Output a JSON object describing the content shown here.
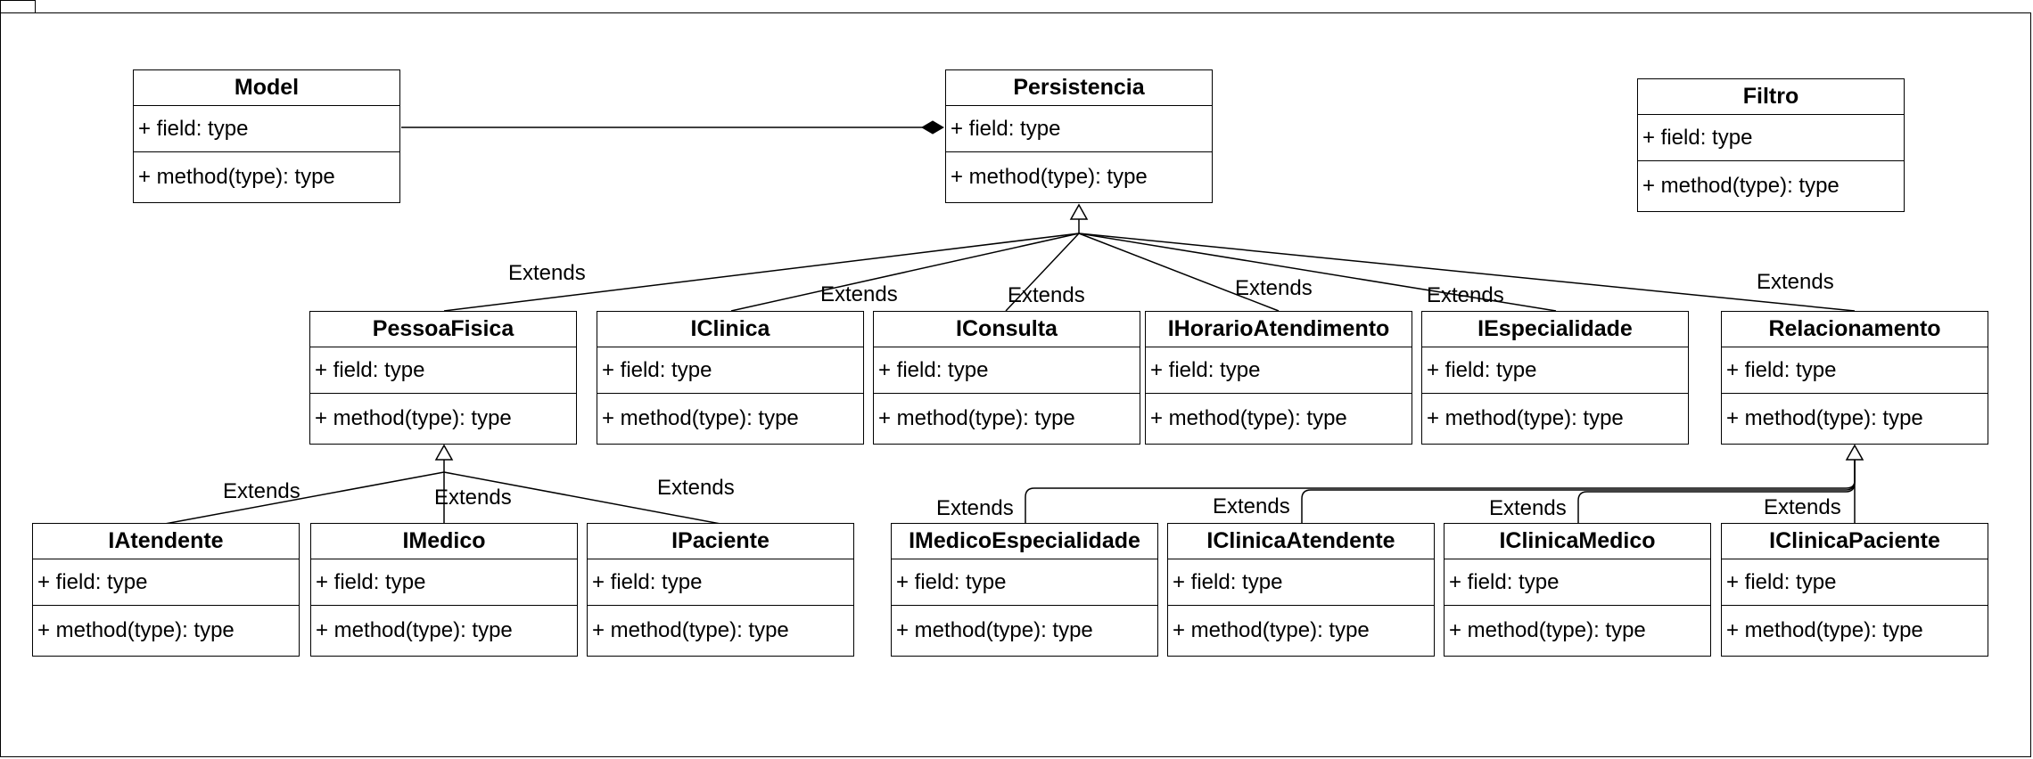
{
  "classes": {
    "model": {
      "name": "Model",
      "field": "+ field: type",
      "method": "+ method(type): type"
    },
    "persistencia": {
      "name": "Persistencia",
      "field": "+ field: type",
      "method": "+ method(type): type"
    },
    "filtro": {
      "name": "Filtro",
      "field": "+ field: type",
      "method": "+ method(type): type"
    },
    "pessoafisica": {
      "name": "PessoaFisica",
      "field": "+ field: type",
      "method": "+ method(type): type"
    },
    "iclinica": {
      "name": "IClinica",
      "field": "+ field: type",
      "method": "+ method(type): type"
    },
    "iconsulta": {
      "name": "IConsulta",
      "field": "+ field: type",
      "method": "+ method(type): type"
    },
    "ihorario": {
      "name": "IHorarioAtendimento",
      "field": "+ field: type",
      "method": "+ method(type): type"
    },
    "iespecialidade": {
      "name": "IEspecialidade",
      "field": "+ field: type",
      "method": "+ method(type): type"
    },
    "relacionamento": {
      "name": "Relacionamento",
      "field": "+ field: type",
      "method": "+ method(type): type"
    },
    "iatendente": {
      "name": "IAtendente",
      "field": "+ field: type",
      "method": "+ method(type): type"
    },
    "imedico": {
      "name": "IMedico",
      "field": "+ field: type",
      "method": "+ method(type): type"
    },
    "ipaciente": {
      "name": "IPaciente",
      "field": "+ field: type",
      "method": "+ method(type): type"
    },
    "imedicoespecialidade": {
      "name": "IMedicoEspecialidade",
      "field": "+ field: type",
      "method": "+ method(type): type"
    },
    "iclinicaatendente": {
      "name": "IClinicaAtendente",
      "field": "+ field: type",
      "method": "+ method(type): type"
    },
    "iclinicamedico": {
      "name": "IClinicaMedico",
      "field": "+ field: type",
      "method": "+ method(type): type"
    },
    "iclinicapaciente": {
      "name": "IClinicaPaciente",
      "field": "+ field: type",
      "method": "+ method(type): type"
    }
  },
  "relations": {
    "extends_label": "Extends"
  }
}
